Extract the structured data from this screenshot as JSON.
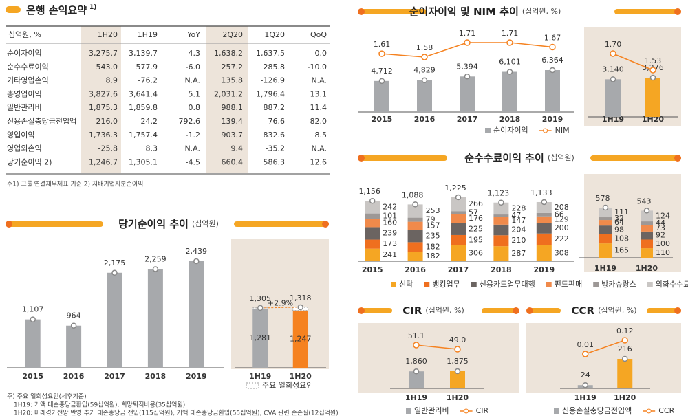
{
  "table_section": {
    "title": "은행 손익요약",
    "title_note": "1)",
    "note": "주1) 그룹 연결재무제표 기준   2) 지배기업지분순이익"
  },
  "table": {
    "columns": [
      "십억원, %",
      "1H20",
      "1H19",
      "YoY",
      "2Q20",
      "1Q20",
      "QoQ"
    ],
    "rows": [
      [
        "순이자이익",
        "3,275.7",
        "3,139.7",
        "4.3",
        "1,638.2",
        "1,637.5",
        "0.0"
      ],
      [
        "순수수료이익",
        "543.0",
        "577.9",
        "-6.0",
        "257.2",
        "285.8",
        "-10.0"
      ],
      [
        "기타영업손익",
        "8.9",
        "-76.2",
        "N.A.",
        "135.8",
        "-126.9",
        "N.A."
      ],
      [
        "총영업이익",
        "3,827.6",
        "3,641.4",
        "5.1",
        "2,031.2",
        "1,796.4",
        "13.1"
      ],
      [
        "일반관리비",
        "1,875.3",
        "1,859.8",
        "0.8",
        "988.1",
        "887.2",
        "11.4"
      ],
      [
        "신용손실충당금전입액",
        "216.0",
        "24.2",
        "792.6",
        "139.4",
        "76.6",
        "82.0"
      ],
      [
        "영업이익",
        "1,736.3",
        "1,757.4",
        "-1.2",
        "903.7",
        "832.6",
        "8.5"
      ],
      [
        "영업외손익",
        "-25.8",
        "8.3",
        "N.A.",
        "9.4",
        "-35.2",
        "N.A."
      ],
      [
        "당기순이익 2)",
        "1,246.7",
        "1,305.1",
        "-4.5",
        "660.4",
        "586.3",
        "12.6"
      ]
    ]
  },
  "chart_data": [
    {
      "type": "bar",
      "title": "당기순이익 추이",
      "unit": "(십억원)",
      "categories": [
        "2015",
        "2016",
        "2017",
        "2018",
        "2019"
      ],
      "values": [
        1107,
        964,
        2175,
        2259,
        2439
      ],
      "value_labels": [
        "1,107",
        "964",
        "2,175",
        "2,259",
        "2,439"
      ],
      "color": "#a7a9ac",
      "notes": [
        "주) 주요 일회성요인(세후기준)",
        "1H19: 거액 대손충당금환입(59십억원), 희망퇴직비용(35십억원)",
        "1H20: 미래경기전망 반영 추가 대손충당금 전입(115십억원), 거액 대손충당금환입(55십억원), CVA 관련 순손실(12십억원)"
      ]
    },
    {
      "type": "stacked_bar",
      "categories": [
        "1H19",
        "1H20"
      ],
      "series": [
        {
          "colors": [
            "#a7a9ac",
            "#f58220"
          ],
          "values": [
            1281,
            1247
          ],
          "value_labels": [
            "1,281",
            "1,247"
          ]
        },
        {
          "name": "주요 일회성요인",
          "color": "#ffffff",
          "values": [
            24,
            71
          ]
        }
      ],
      "totals": [
        1305,
        1318
      ],
      "total_labels": [
        "1,305",
        "1,318"
      ],
      "annotation": "+2.9%"
    },
    {
      "type": "bar_line",
      "title": "순이자이익 및 NIM 추이",
      "unit": "(십억원, %)",
      "categories": [
        "2015",
        "2016",
        "2017",
        "2018",
        "2019"
      ],
      "series": [
        {
          "name": "순이자이익",
          "color": "#a7a9ac",
          "values": [
            4712,
            4829,
            5394,
            6101,
            6364
          ],
          "value_labels": [
            "4,712",
            "4,829",
            "5,394",
            "6,101",
            "6,364"
          ]
        },
        {
          "name": "NIM",
          "color": "#f58220",
          "axis": "y2",
          "values": [
            1.61,
            1.58,
            1.71,
            1.71,
            1.67
          ]
        }
      ]
    },
    {
      "type": "bar_line",
      "categories": [
        "1H19",
        "1H20"
      ],
      "series": [
        {
          "colors": [
            "#a7a9ac",
            "#f5a623"
          ],
          "values": [
            3140,
            3276
          ],
          "value_labels": [
            "3,140",
            "3,276"
          ]
        },
        {
          "color": "#f58220",
          "axis": "y2",
          "values": [
            1.7,
            1.53
          ],
          "value_labels": [
            "1.70",
            "1.53"
          ]
        }
      ]
    },
    {
      "type": "stacked_bar",
      "title": "순수수료이익 추이",
      "unit": "(십억원)",
      "categories": [
        "2015",
        "2016",
        "2017",
        "2018",
        "2019"
      ],
      "series": [
        {
          "name": "신탁",
          "color": "#f5a623",
          "values": [
            241,
            182,
            306,
            287,
            308
          ]
        },
        {
          "name": "뱅킹업무",
          "color": "#ef6f1f",
          "values": [
            173,
            182,
            195,
            210,
            222
          ]
        },
        {
          "name": "신용카드업무대행",
          "color": "#6b6461",
          "values": [
            239,
            235,
            225,
            204,
            200
          ]
        },
        {
          "name": "펀드판매",
          "color": "#f08a4b",
          "values": [
            160,
            157,
            176,
            147,
            129
          ]
        },
        {
          "name": "방카슈랑스",
          "color": "#9d9896",
          "values": [
            101,
            79,
            57,
            47,
            66
          ]
        },
        {
          "name": "외화수수료 등 기타",
          "color": "#c9c6c4",
          "values": [
            242,
            253,
            266,
            228,
            208
          ]
        }
      ],
      "totals": [
        1156,
        1088,
        1225,
        1123,
        1133
      ],
      "total_labels": [
        "1,156",
        "1,088",
        "1,225",
        "1,123",
        "1,133"
      ]
    },
    {
      "type": "stacked_bar",
      "categories": [
        "1H19",
        "1H20"
      ],
      "series": [
        {
          "color": "#f5a623",
          "values": [
            165,
            110
          ]
        },
        {
          "color": "#ef6f1f",
          "values": [
            108,
            100
          ]
        },
        {
          "color": "#6b6461",
          "values": [
            98,
            92
          ]
        },
        {
          "color": "#f08a4b",
          "values": [
            64,
            73
          ]
        },
        {
          "color": "#9d9896",
          "values": [
            32,
            44
          ]
        },
        {
          "color": "#c9c6c4",
          "values": [
            111,
            124
          ]
        }
      ],
      "totals": [
        578,
        543
      ]
    },
    {
      "type": "bar_line",
      "title": "CIR",
      "unit": "(십억원, %)",
      "categories": [
        "1H19",
        "1H20"
      ],
      "series": [
        {
          "name": "일반관리비",
          "color": "#a7a9ac",
          "colors": [
            "#a7a9ac",
            "#f5a623"
          ],
          "values": [
            1860,
            1875
          ],
          "value_labels": [
            "1,860",
            "1,875"
          ]
        },
        {
          "name": "CIR",
          "color": "#f58220",
          "axis": "y2",
          "values": [
            51.1,
            49.0
          ],
          "value_labels": [
            "51.1",
            "49.0"
          ]
        }
      ]
    },
    {
      "type": "bar_line",
      "title": "CCR",
      "unit": "(십억원, %)",
      "categories": [
        "1H19",
        "1H20"
      ],
      "series": [
        {
          "name": "신용손실충당금전입액",
          "color": "#a7a9ac",
          "colors": [
            "#a7a9ac",
            "#f5a623"
          ],
          "values": [
            24,
            216
          ]
        },
        {
          "name": "CCR",
          "color": "#f58220",
          "axis": "y2",
          "values": [
            0.01,
            0.12
          ]
        }
      ]
    }
  ]
}
